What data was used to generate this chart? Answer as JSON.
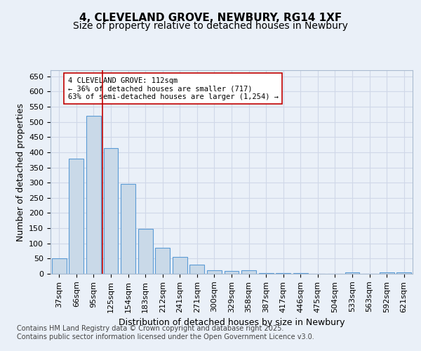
{
  "title": "4, CLEVELAND GROVE, NEWBURY, RG14 1XF",
  "subtitle": "Size of property relative to detached houses in Newbury",
  "xlabel": "Distribution of detached houses by size in Newbury",
  "ylabel": "Number of detached properties",
  "categories": [
    "37sqm",
    "66sqm",
    "95sqm",
    "125sqm",
    "154sqm",
    "183sqm",
    "212sqm",
    "241sqm",
    "271sqm",
    "300sqm",
    "329sqm",
    "358sqm",
    "387sqm",
    "417sqm",
    "446sqm",
    "475sqm",
    "504sqm",
    "533sqm",
    "563sqm",
    "592sqm",
    "621sqm"
  ],
  "values": [
    50,
    378,
    520,
    413,
    296,
    147,
    85,
    55,
    30,
    11,
    9,
    12,
    2,
    2,
    2,
    1,
    0,
    4,
    0,
    4,
    4
  ],
  "bar_color": "#c9d9e8",
  "bar_edge_color": "#5b9bd5",
  "vline_x": 2.5,
  "vline_color": "#c00000",
  "annotation_box_text": "4 CLEVELAND GROVE: 112sqm\n← 36% of detached houses are smaller (717)\n63% of semi-detached houses are larger (1,254) →",
  "annotation_font_size": 7.5,
  "box_edge_color": "#c00000",
  "box_face_color": "white",
  "ylim": [
    0,
    670
  ],
  "yticks": [
    0,
    50,
    100,
    150,
    200,
    250,
    300,
    350,
    400,
    450,
    500,
    550,
    600,
    650
  ],
  "grid_color": "#d0d8e8",
  "background_color": "#eaf0f8",
  "plot_bg_color": "#eaf0f8",
  "footer_text": "Contains HM Land Registry data © Crown copyright and database right 2025.\nContains public sector information licensed under the Open Government Licence v3.0.",
  "title_fontsize": 11,
  "subtitle_fontsize": 10,
  "xlabel_fontsize": 9,
  "ylabel_fontsize": 9,
  "tick_fontsize": 8,
  "footer_fontsize": 7
}
